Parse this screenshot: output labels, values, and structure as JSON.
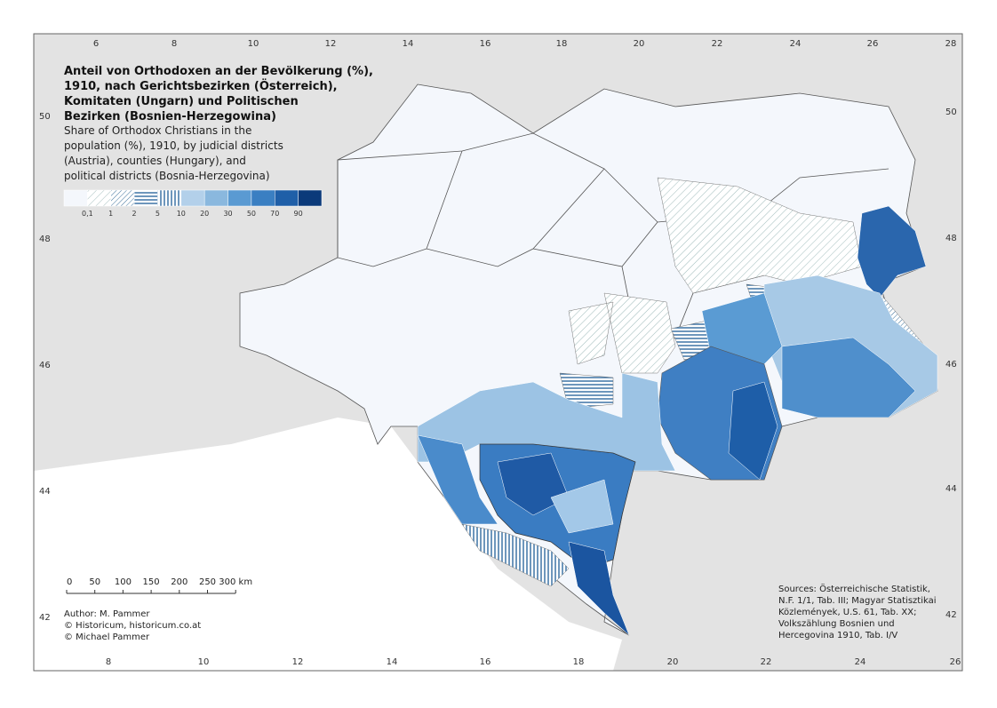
{
  "title": "Anteil von Orthodoxen an der Bevölkerung (%), 1910, nach Gerichtsbezirken (Österreich), Komitaten (Ungarn) und Politischen Bezirken (Bosnien-Herzegowina)",
  "title_lines": [
    "Anteil von Orthodoxen an der Bevölkerung (%),",
    "1910, nach Gerichtsbezirken (Österreich),",
    "Komitaten (Ungarn) und Politischen",
    "Bezirken (Bosnien-Herzegowina)"
  ],
  "subtitle_lines": [
    "Share of Orthodox Christians in the",
    "population (%), 1910, by judicial districts",
    "(Austria), counties (Hungary), and",
    "political districts (Bosnia-Herzegovina)"
  ],
  "legend": [
    "0,1",
    "1",
    "2",
    "5",
    "10",
    "20",
    "30",
    "50",
    "70",
    "90"
  ],
  "scale_bar": [
    "0",
    "50",
    "100",
    "150",
    "200",
    "250",
    "300 km"
  ],
  "credits": [
    "Author: M. Pammer",
    "© Historicum, historicum.co.at",
    "© Michael Pammer"
  ],
  "sources": [
    "Sources: Österreichische Statistik,",
    "N.F. 1/1, Tab. III; Magyar Statisztikai",
    "Közlemények, U.S. 61, Tab. XX;",
    "Volkszählung Bosnien und",
    "Hercegovina 1910, Tab. I/V"
  ],
  "graticule": {
    "top": [
      "6",
      "8",
      "10",
      "12",
      "14",
      "16",
      "18",
      "20",
      "22",
      "24",
      "26",
      "28"
    ],
    "bottom": [
      "8",
      "10",
      "12",
      "14",
      "16",
      "18",
      "20",
      "22",
      "24",
      "26"
    ],
    "left": [
      "50",
      "48",
      "46",
      "44",
      "42"
    ],
    "right": [
      "50",
      "48",
      "46",
      "44",
      "42"
    ]
  }
}
